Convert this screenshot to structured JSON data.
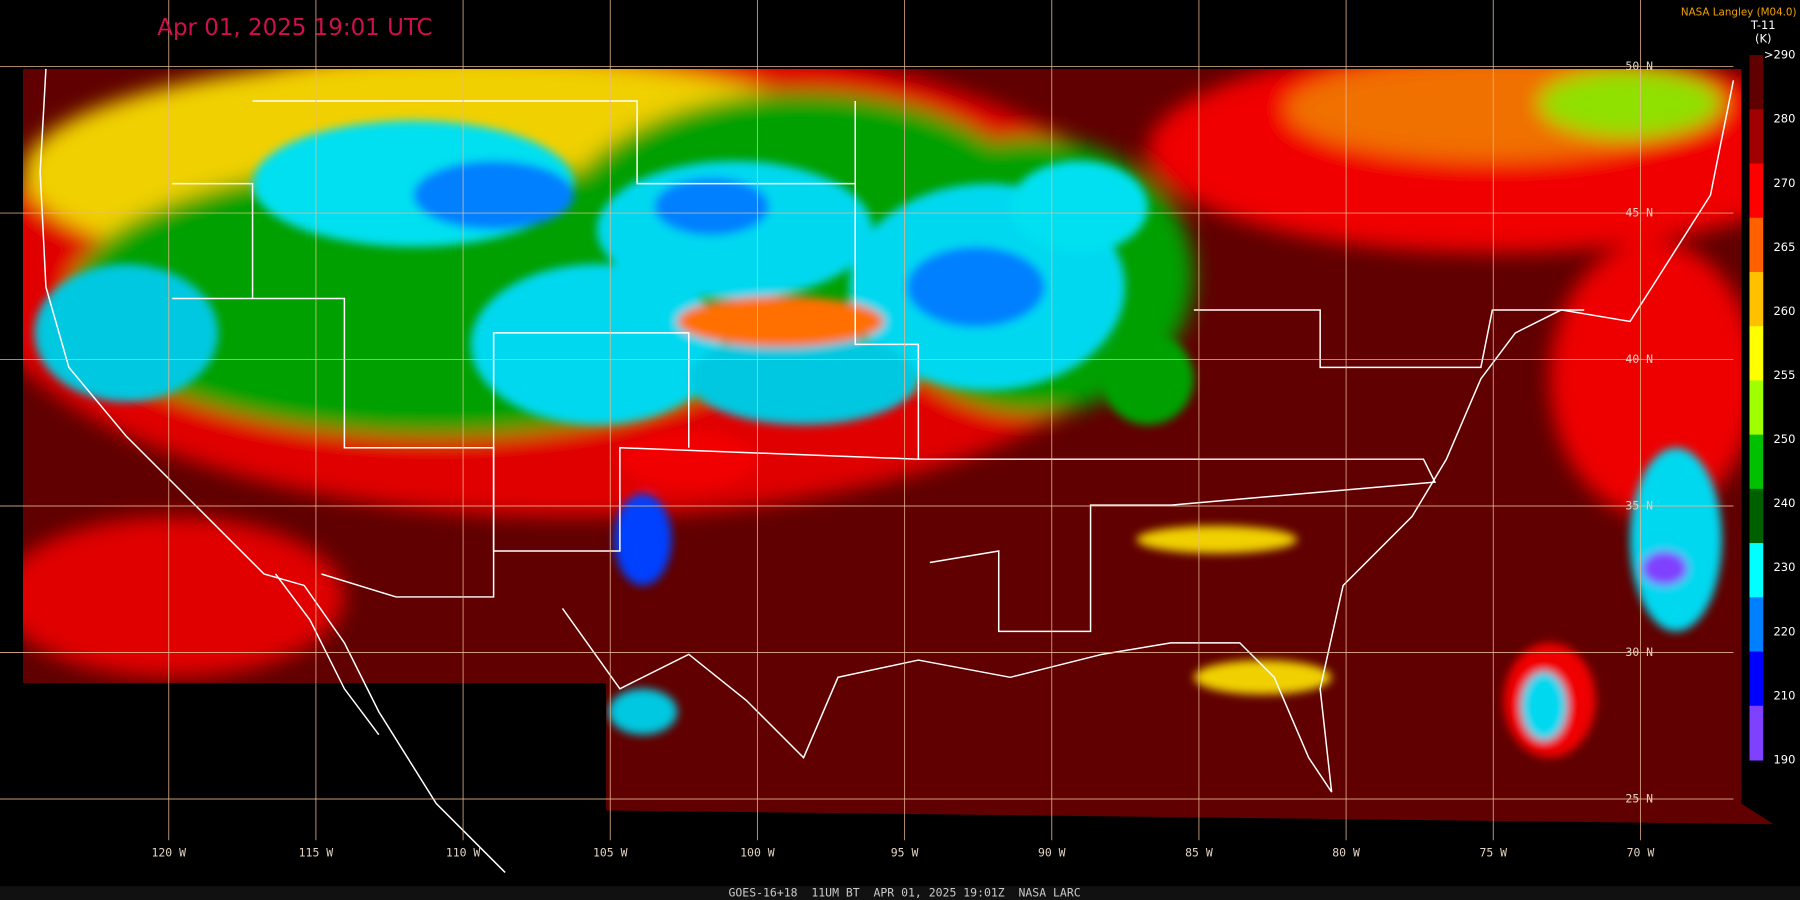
{
  "header": {
    "timestamp": "Apr 01, 2025 19:01 UTC",
    "credit": "NASA Langley (M04.0)"
  },
  "colorbar": {
    "title": "T-11",
    "unit": "(K)",
    "labels": [
      ">290",
      "280",
      "270",
      "265",
      "260",
      "255",
      "250",
      "240",
      "230",
      "220",
      "210",
      "190"
    ]
  },
  "grid": {
    "latitudes": [
      "50 N",
      "45 N",
      "40 N",
      "35 N",
      "30 N",
      "25 N"
    ],
    "longitudes": [
      "120 W",
      "115 W",
      "110 W",
      "105 W",
      "100 W",
      "95 W",
      "90 W",
      "85 W",
      "80 W",
      "75 W",
      "70 W"
    ]
  },
  "footer": {
    "caption": "GOES-16+18  11UM BT  APR 01, 2025 19:01Z  NASA LARC"
  }
}
